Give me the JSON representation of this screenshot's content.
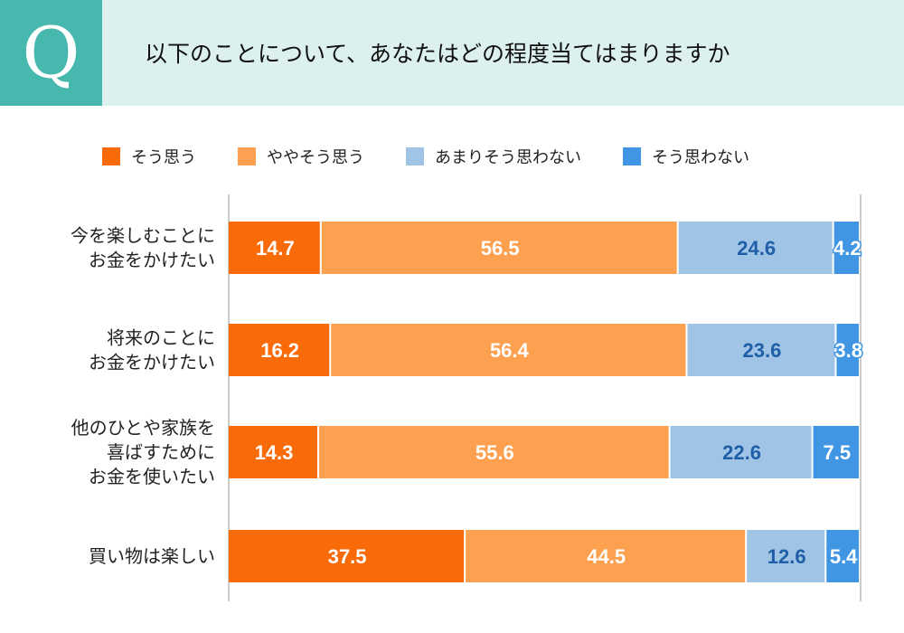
{
  "header": {
    "q_mark": "Q",
    "title": "以下のことについて、あなたはどの程度当てはまりますか"
  },
  "chart_data": {
    "type": "bar",
    "stacked": true,
    "orientation": "horizontal",
    "xlim": [
      0,
      100
    ],
    "categories": [
      [
        "今を楽しむことに",
        "お金をかけたい"
      ],
      [
        "将来のことに",
        "お金をかけたい"
      ],
      [
        "他のひとや家族を",
        "喜ばすために",
        "お金を使いたい"
      ],
      [
        "買い物は楽しい"
      ]
    ],
    "series": [
      {
        "name": "そう思う",
        "color": "#f96a09",
        "label_color": "#ffffff",
        "values": [
          14.7,
          16.2,
          14.3,
          37.5
        ]
      },
      {
        "name": "ややそう思う",
        "color": "#fda04f",
        "label_color": "#ffffff",
        "values": [
          56.5,
          56.4,
          55.6,
          44.5
        ]
      },
      {
        "name": "あまりそう思わない",
        "color": "#a0c4e6",
        "label_color": "#1f5fa8",
        "values": [
          24.6,
          23.6,
          22.6,
          12.6
        ]
      },
      {
        "name": "そう思わない",
        "color": "#4196e4",
        "label_color": "#ffffff",
        "values": [
          4.2,
          3.8,
          7.5,
          5.4
        ]
      }
    ],
    "legend_position": "top",
    "grid": false
  }
}
